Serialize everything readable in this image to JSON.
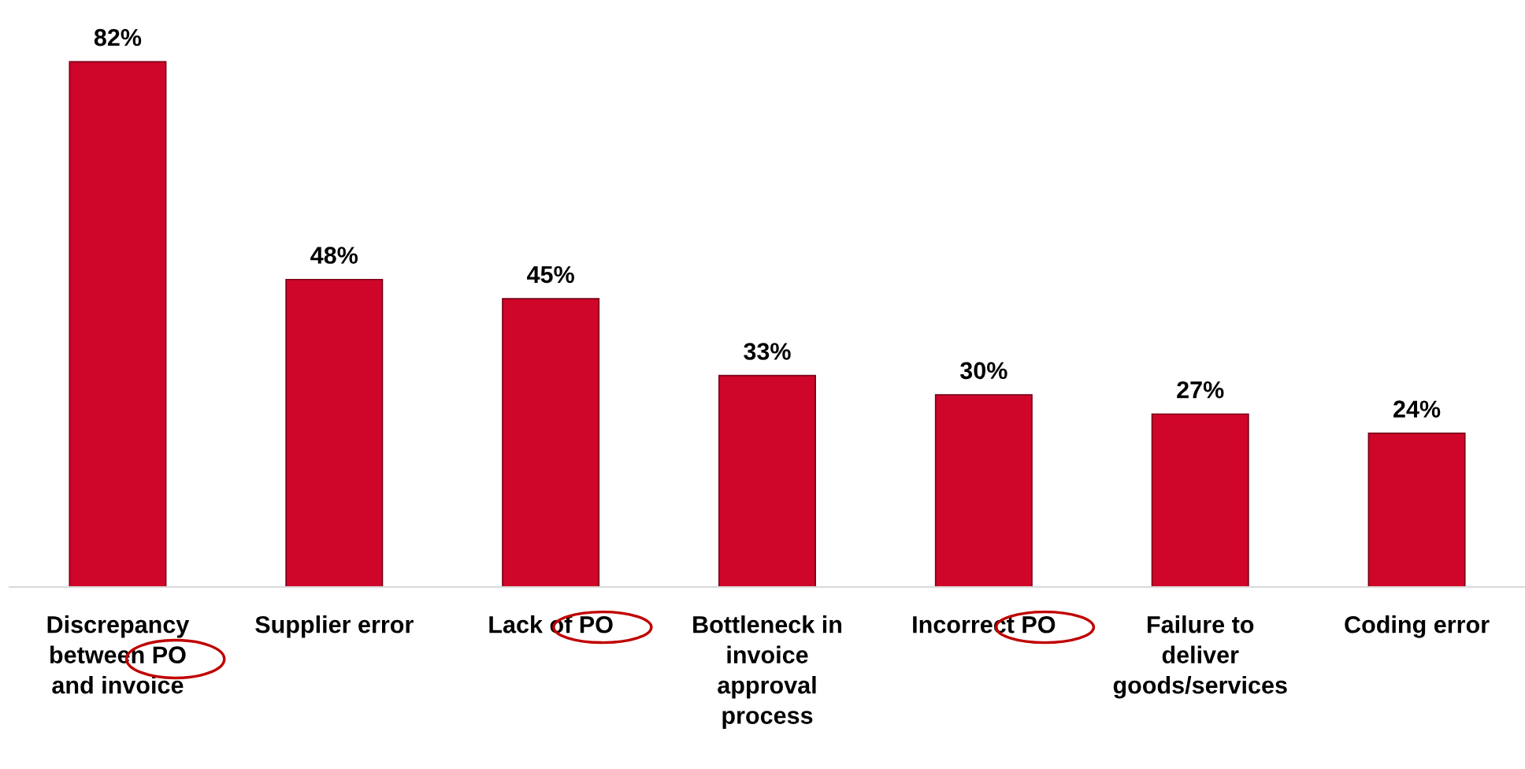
{
  "chart_data": {
    "type": "bar",
    "categories": [
      "Discrepancy\nbetween PO\nand invoice",
      "Supplier error",
      "Lack of PO",
      "Bottleneck in\ninvoice\napproval\nprocess",
      "Incorrect PO",
      "Failure to\ndeliver\ngoods/services",
      "Coding error"
    ],
    "values": [
      82,
      48,
      45,
      33,
      30,
      27,
      24
    ],
    "color": "#d0052a",
    "tick_labels": "x",
    "data_labels": true,
    "value_labels": [
      "82%",
      "48%",
      "45%",
      "33%",
      "30%",
      "27%",
      "24%"
    ],
    "grid": false,
    "legend": false
  }
}
